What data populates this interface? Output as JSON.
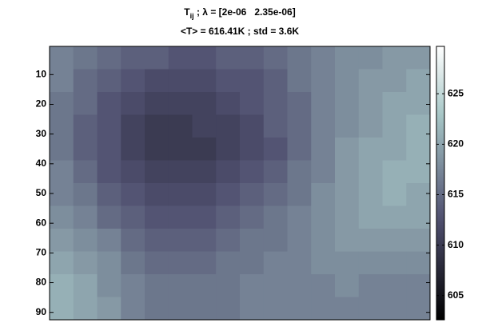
{
  "chart_data": {
    "type": "heatmap",
    "title": [
      "T",
      "ij",
      " ; λ = [2e-06   2.35e-06]"
    ],
    "subtitle": "<T> = 616.41K ; std = 3.6K",
    "colormap": "bone",
    "ylim": [
      0.5,
      92.5
    ],
    "yticks": [
      10,
      20,
      30,
      40,
      50,
      60,
      70,
      80,
      90
    ],
    "clim": [
      602.6,
      629.7
    ],
    "cticks": [
      605,
      610,
      615,
      620,
      625
    ],
    "z": [
      [
        617,
        616,
        615,
        614,
        614,
        613,
        613,
        614,
        614,
        615,
        616,
        617,
        618,
        618,
        619,
        619
      ],
      [
        617,
        615,
        614,
        613,
        612,
        612,
        612,
        613,
        613,
        614,
        616,
        617,
        618,
        619,
        619,
        620
      ],
      [
        616,
        615,
        613,
        612,
        611,
        611,
        611,
        612,
        613,
        614,
        615,
        617,
        618,
        619,
        620,
        620
      ],
      [
        616,
        614,
        613,
        611,
        610,
        610,
        611,
        611,
        612,
        614,
        615,
        617,
        618,
        619,
        620,
        621
      ],
      [
        616,
        614,
        613,
        611,
        610,
        610,
        610,
        611,
        612,
        613,
        615,
        617,
        619,
        620,
        620,
        621
      ],
      [
        617,
        615,
        613,
        612,
        611,
        611,
        611,
        612,
        613,
        614,
        616,
        617,
        619,
        620,
        621,
        621
      ],
      [
        617,
        616,
        614,
        613,
        612,
        612,
        612,
        613,
        614,
        615,
        616,
        618,
        619,
        620,
        621,
        620
      ],
      [
        618,
        617,
        615,
        614,
        613,
        613,
        613,
        614,
        615,
        616,
        617,
        618,
        619,
        620,
        620,
        620
      ],
      [
        619,
        618,
        617,
        615,
        614,
        614,
        614,
        615,
        616,
        616,
        617,
        618,
        619,
        619,
        619,
        619
      ],
      [
        620,
        619,
        618,
        616,
        615,
        615,
        615,
        616,
        616,
        617,
        617,
        618,
        618,
        618,
        618,
        618
      ],
      [
        621,
        620,
        618,
        617,
        616,
        616,
        616,
        616,
        617,
        617,
        617,
        617,
        618,
        617,
        617,
        617
      ],
      [
        621,
        620,
        619,
        617,
        616,
        616,
        616,
        616,
        617,
        617,
        617,
        617,
        617,
        617,
        617,
        617
      ]
    ]
  }
}
